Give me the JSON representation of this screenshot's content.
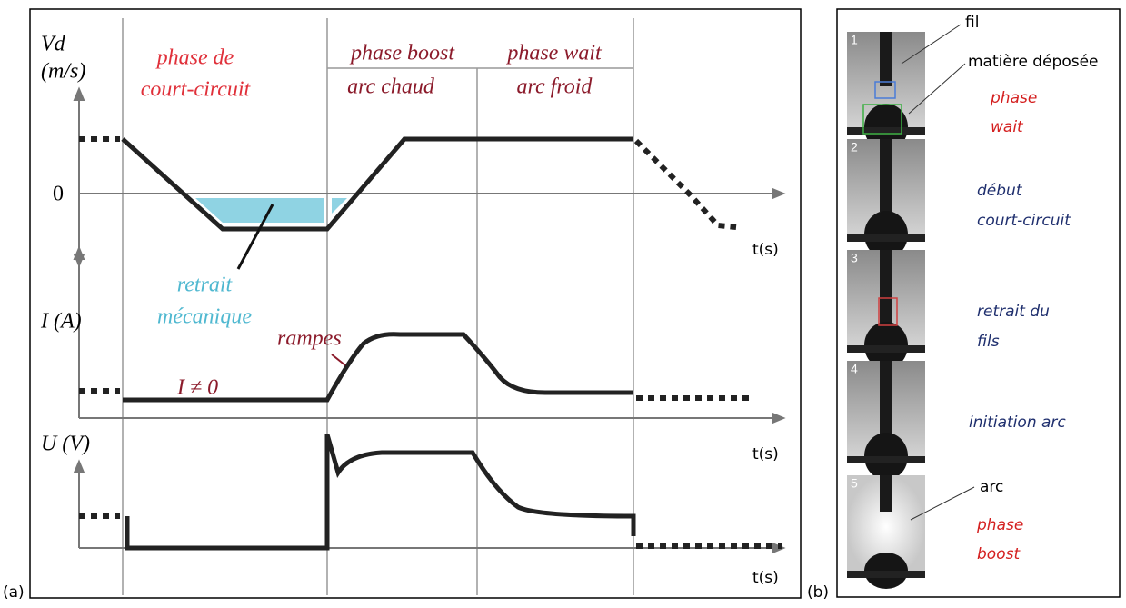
{
  "panel_a": {
    "label": "(a)",
    "vd": {
      "title": "Vd",
      "unit": "(m/s)",
      "zero": "0",
      "time": "t(s)"
    },
    "phases": [
      {
        "name": "phase de",
        "detail": "court-circuit"
      },
      {
        "name": "phase boost",
        "detail": "arc chaud"
      },
      {
        "name": "phase wait",
        "detail": "arc froid"
      }
    ],
    "retrait": {
      "line1": "retrait",
      "line2": "mécanique"
    },
    "current": {
      "title": "I (A)",
      "ramps": "rampes",
      "nonzero": "I ≠ 0",
      "time": "t(s)"
    },
    "voltage": {
      "title": "U (V)",
      "time": "t(s)"
    }
  },
  "panel_b": {
    "label": "(b)",
    "frames": [
      "1",
      "2",
      "3",
      "4",
      "5"
    ],
    "annotations": {
      "wire": "fil",
      "deposit": "matière déposée",
      "wait": [
        "phase",
        "wait"
      ],
      "start": [
        "début",
        "court-circuit"
      ],
      "retract": [
        "retrait du",
        "fils"
      ],
      "init": "initiation arc",
      "arc": "arc",
      "boost": [
        "phase",
        "boost"
      ]
    }
  }
}
